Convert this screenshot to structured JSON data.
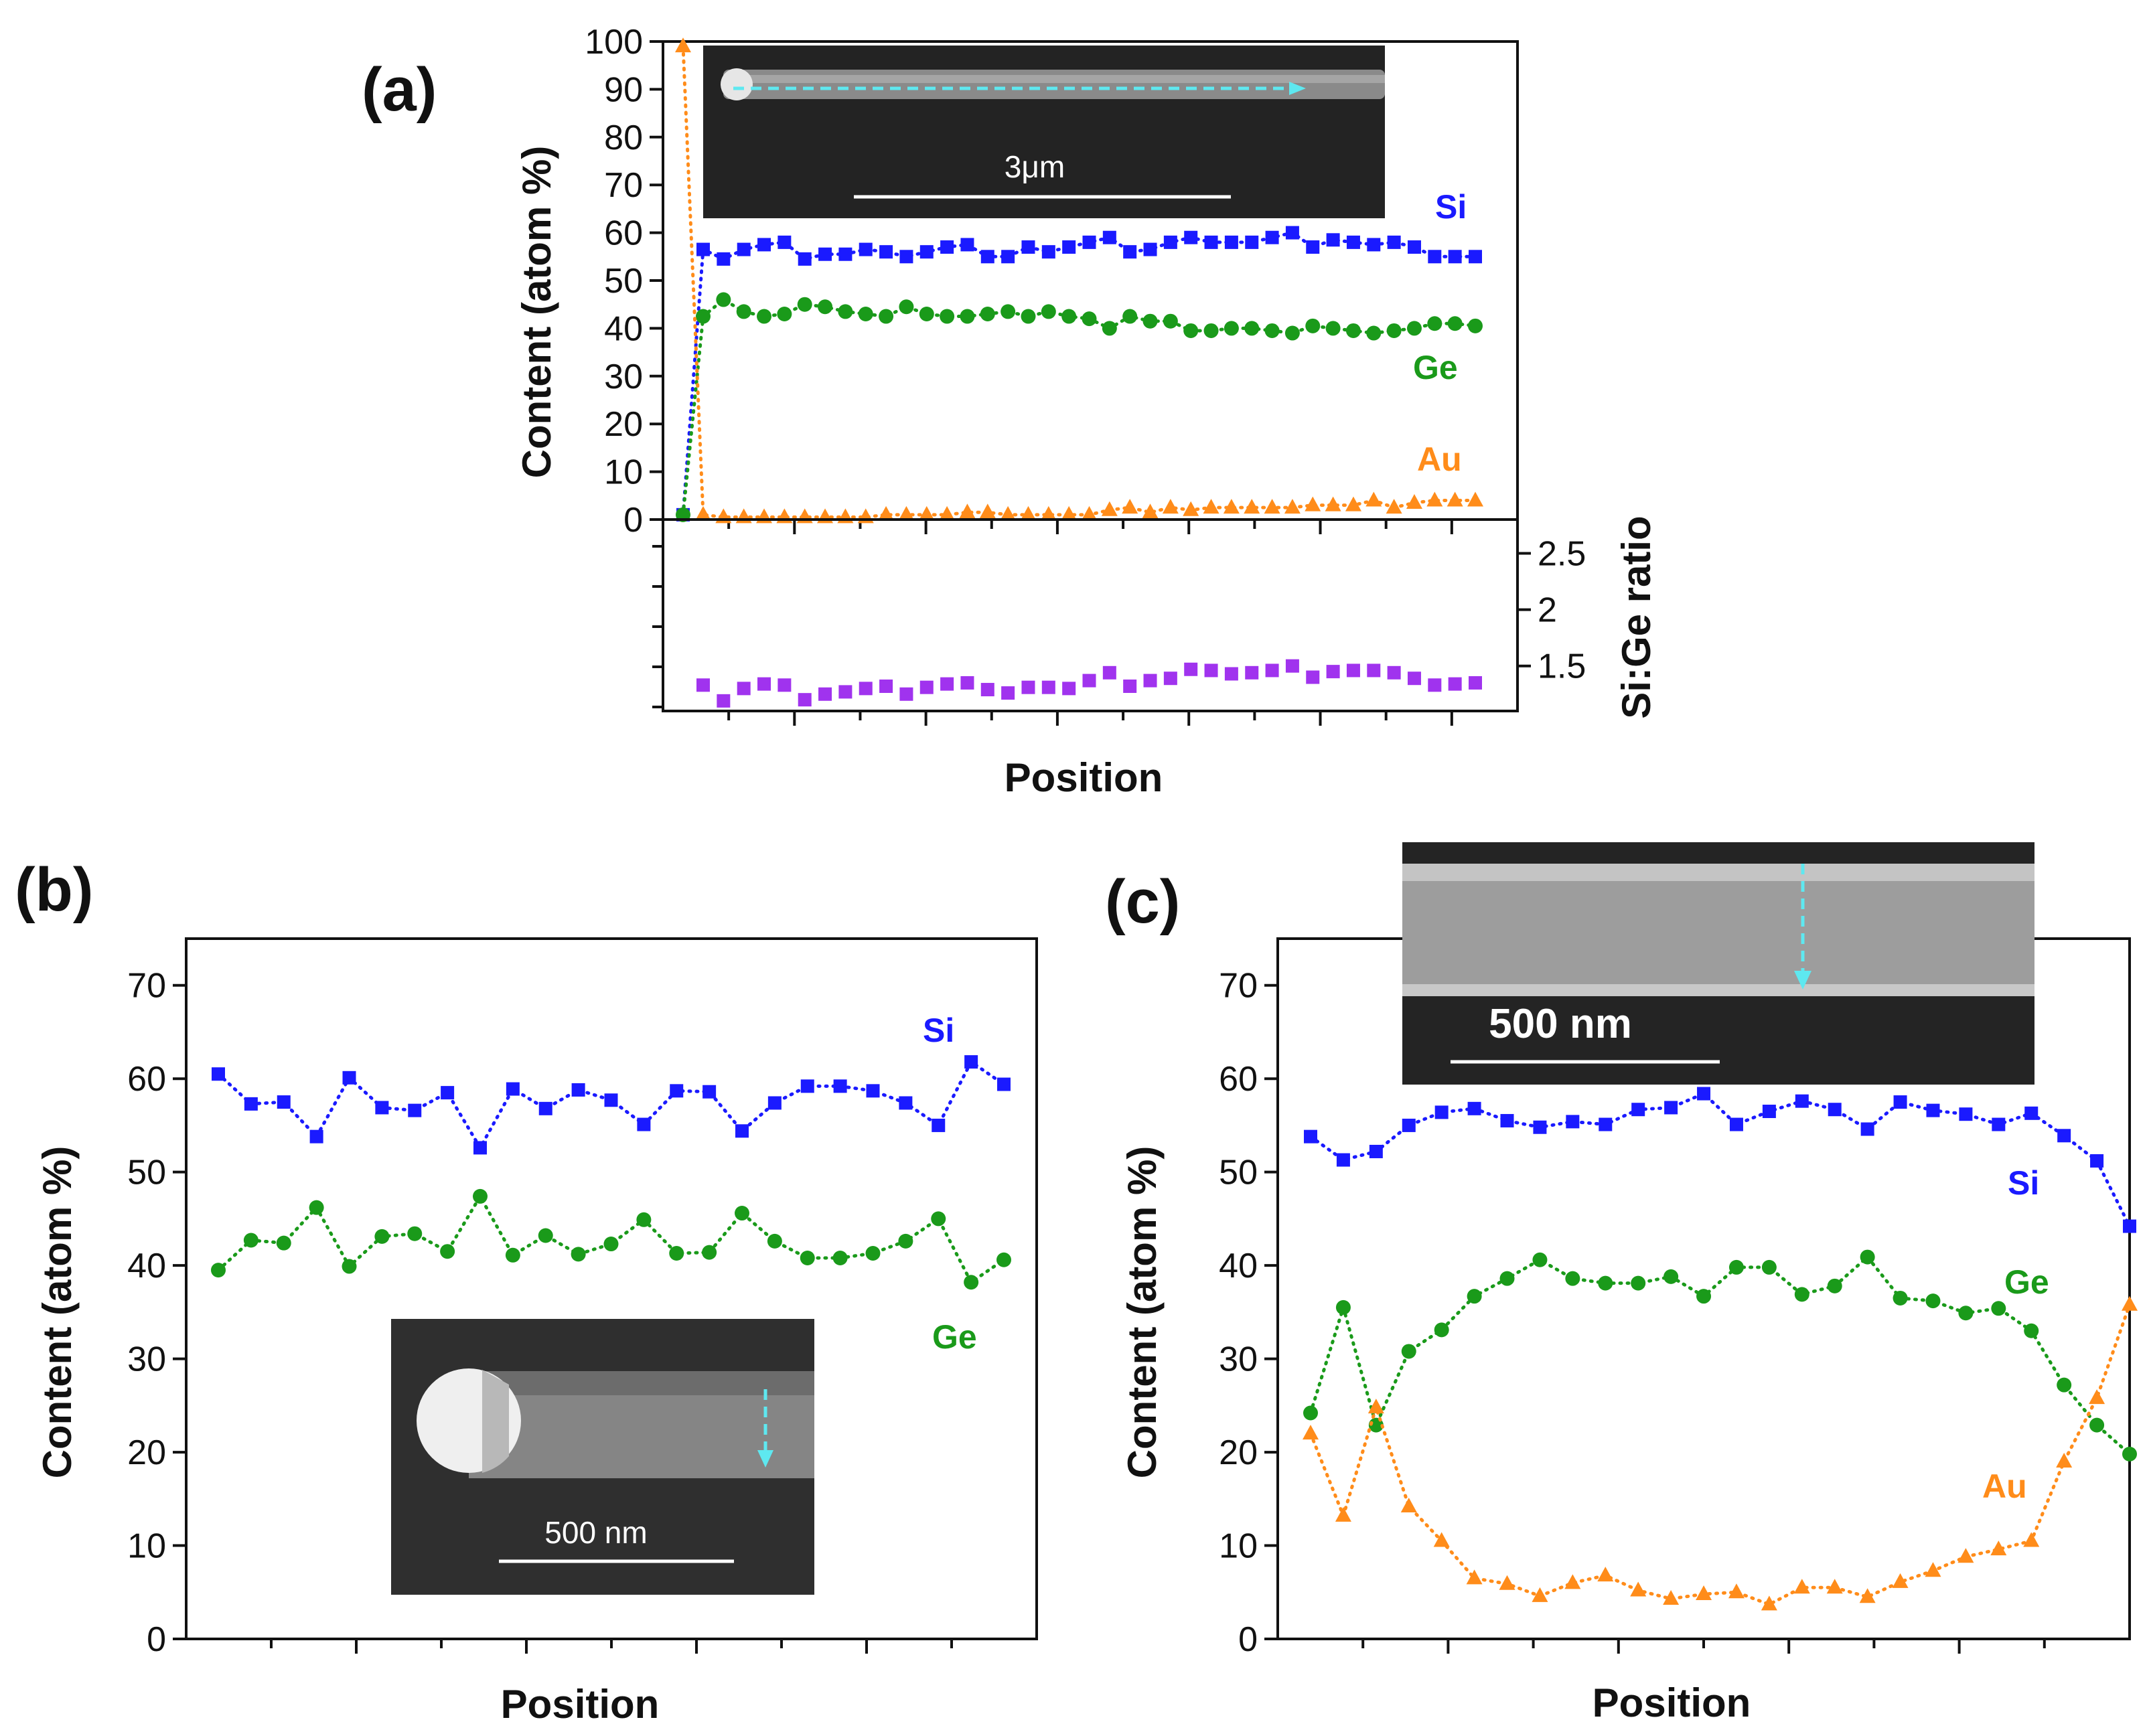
{
  "colors": {
    "si": "#1a1aff",
    "ge": "#1a9a1a",
    "au": "#ff8c1a",
    "ratio": "#a033ee",
    "arrow": "#5ee8f0"
  },
  "labels": {
    "panel_a": "(a)",
    "panel_b": "(b)",
    "panel_c": "(c)",
    "position": "Position",
    "content_axis": "Content (atom %)",
    "ratio_axis": "Si:Ge  ratio",
    "scale_a": "3μm",
    "scale_b": "500 nm",
    "scale_c": "500 nm"
  },
  "chart_data": [
    {
      "id": "a",
      "type": "scatter",
      "title": "(a)",
      "xlabel": "Position",
      "ylabel": "Content (atom %)",
      "ylim": [
        0,
        100
      ],
      "yticks": [
        "0",
        "10",
        "20",
        "30",
        "40",
        "50",
        "60",
        "70",
        "80",
        "90",
        "100"
      ],
      "series": [
        {
          "name": "Si",
          "marker": "square",
          "color": "#1a1aff",
          "values": [
            1,
            56.5,
            54.5,
            56.5,
            57.5,
            58,
            54.5,
            55.5,
            55.5,
            56.5,
            56,
            55,
            56,
            57,
            57.5,
            55,
            55,
            57,
            56,
            57,
            58,
            59,
            56,
            56.5,
            58,
            59,
            58,
            58,
            58,
            59,
            60,
            57,
            58.5,
            58,
            57.5,
            58,
            57,
            55,
            55,
            55
          ]
        },
        {
          "name": "Ge",
          "marker": "circle",
          "color": "#1a9a1a",
          "values": [
            1,
            42.5,
            46,
            43.5,
            42.5,
            43,
            45,
            44.5,
            43.5,
            43,
            42.5,
            44.5,
            43,
            42.5,
            42.5,
            43,
            43.5,
            42.5,
            43.5,
            42.5,
            42,
            40,
            42.5,
            41.5,
            41.5,
            39.5,
            39.5,
            40,
            40,
            39.5,
            39,
            40.5,
            40,
            39.5,
            39,
            39.5,
            40,
            41,
            41,
            40.5
          ]
        },
        {
          "name": "Au",
          "marker": "triangle",
          "color": "#ff8c1a",
          "values": [
            99,
            1,
            0.5,
            0.5,
            0.5,
            0.5,
            0.5,
            0.5,
            0.5,
            0.5,
            1,
            1,
            1,
            1,
            1.5,
            1.5,
            1,
            1,
            1,
            1,
            1,
            2,
            2.5,
            1.5,
            2.5,
            2,
            2.5,
            2.5,
            2.5,
            2.5,
            2.5,
            3,
            3,
            3,
            4,
            2.5,
            3.5,
            4,
            4,
            4
          ]
        },
        {
          "name": "Si:Ge ratio",
          "marker": "square",
          "color": "#a033ee",
          "axis": "ratio",
          "ylim": [
            1.1,
            2.8
          ],
          "yticks": [
            "1.5",
            "2",
            "2.5"
          ],
          "values": [
            1.33,
            1.19,
            1.3,
            1.34,
            1.33,
            1.2,
            1.25,
            1.27,
            1.3,
            1.32,
            1.25,
            1.31,
            1.34,
            1.35,
            1.29,
            1.26,
            1.31,
            1.31,
            1.3,
            1.37,
            1.44,
            1.32,
            1.37,
            1.39,
            1.47,
            1.46,
            1.43,
            1.44,
            1.46,
            1.5,
            1.4,
            1.45,
            1.46,
            1.46,
            1.44,
            1.39,
            1.33,
            1.34,
            1.35
          ]
        }
      ]
    },
    {
      "id": "b",
      "type": "scatter",
      "title": "(b)",
      "xlabel": "Position",
      "ylabel": "Content (atom %)",
      "ylim": [
        0,
        75
      ],
      "yticks": [
        "0",
        "10",
        "20",
        "30",
        "40",
        "50",
        "60",
        "70"
      ],
      "series": [
        {
          "name": "Si",
          "marker": "square",
          "color": "#1a1aff",
          "values": [
            60.5,
            57.3,
            57.5,
            53.8,
            60.1,
            56.9,
            56.6,
            58.5,
            52.6,
            58.9,
            56.8,
            58.8,
            57.7,
            55.1,
            58.7,
            58.6,
            54.4,
            57.4,
            59.2,
            59.2,
            58.7,
            57.4,
            55.0,
            61.8,
            59.4
          ]
        },
        {
          "name": "Ge",
          "marker": "circle",
          "color": "#1a9a1a",
          "values": [
            39.5,
            42.7,
            42.4,
            46.2,
            39.9,
            43.1,
            43.4,
            41.5,
            47.4,
            41.1,
            43.2,
            41.2,
            42.3,
            44.9,
            41.3,
            41.4,
            45.6,
            42.6,
            40.8,
            40.8,
            41.3,
            42.6,
            45.0,
            38.2,
            40.6
          ]
        }
      ]
    },
    {
      "id": "c",
      "type": "scatter",
      "title": "(c)",
      "xlabel": "Position",
      "ylabel": "Content (atom %)",
      "ylim": [
        0,
        75
      ],
      "yticks": [
        "0",
        "10",
        "20",
        "30",
        "40",
        "50",
        "60",
        "70"
      ],
      "series": [
        {
          "name": "Si",
          "marker": "square",
          "color": "#1a1aff",
          "values": [
            53.8,
            51.3,
            52.2,
            55.0,
            56.4,
            56.8,
            55.5,
            54.8,
            55.4,
            55.1,
            56.7,
            56.9,
            58.4,
            55.1,
            56.5,
            57.6,
            56.7,
            54.6,
            57.5,
            56.6,
            56.2,
            55.1,
            56.3,
            53.9,
            51.2,
            44.2
          ]
        },
        {
          "name": "Ge",
          "marker": "circle",
          "color": "#1a9a1a",
          "values": [
            24.2,
            35.5,
            22.9,
            30.8,
            33.1,
            36.7,
            38.6,
            40.6,
            38.6,
            38.1,
            38.1,
            38.8,
            36.7,
            39.8,
            39.8,
            36.9,
            37.8,
            40.9,
            36.5,
            36.2,
            34.9,
            35.4,
            33.0,
            27.2,
            22.9,
            19.8
          ]
        },
        {
          "name": "Au",
          "marker": "triangle",
          "color": "#ff8c1a",
          "values": [
            22.0,
            13.2,
            24.8,
            14.2,
            10.5,
            6.5,
            5.9,
            4.6,
            6.0,
            6.8,
            5.2,
            4.3,
            4.8,
            5.0,
            3.7,
            5.5,
            5.5,
            4.5,
            6.1,
            7.3,
            8.8,
            9.6,
            10.5,
            19.0,
            25.8,
            35.8
          ]
        }
      ]
    }
  ]
}
